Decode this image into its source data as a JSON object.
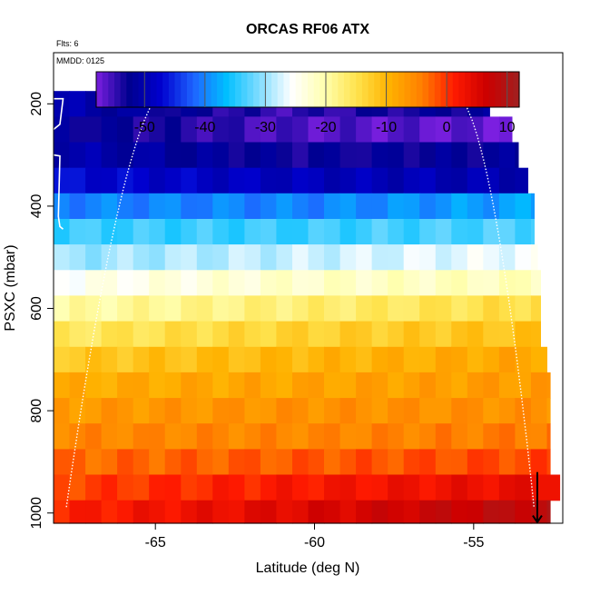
{
  "chart_data": {
    "type": "heatmap",
    "title": "ORCAS RF06 ATX",
    "note_flights": "Flts: 6",
    "note_date": "MMDD: 0125",
    "xlabel": "Latitude (deg N)",
    "ylabel": "PSXC (mbar)",
    "xlim": [
      -68.2,
      -52.2
    ],
    "ylim": [
      1020,
      100
    ],
    "x_ticks": [
      -65,
      -60,
      -55
    ],
    "y_ticks": [
      200,
      400,
      600,
      800,
      1000
    ],
    "colorbar": {
      "range": [
        -58,
        12
      ],
      "ticks": [
        -50,
        -40,
        -30,
        -20,
        -10,
        0,
        10
      ],
      "palette": [
        "#7b1fe0",
        "#00008f",
        "#0000cf",
        "#1e64ff",
        "#00bfff",
        "#7fdcff",
        "#ffffff",
        "#ffffb0",
        "#ffe34d",
        "#ffb200",
        "#ff7f00",
        "#ff1a00",
        "#cc0000",
        "#a02020"
      ]
    },
    "pressure_levels": [
      {
        "p_top": 175,
        "p_bot": 225,
        "lat_max": -54.5,
        "t_south": -50,
        "t_north": -52,
        "mid": -55
      },
      {
        "p_top": 225,
        "p_bot": 275,
        "lat_max": -53.8,
        "t_south": -52,
        "t_north": -57,
        "mid": -56
      },
      {
        "p_top": 275,
        "p_bot": 325,
        "lat_max": -53.6,
        "t_south": -50,
        "t_north": -52,
        "mid": -53
      },
      {
        "p_top": 325,
        "p_bot": 375,
        "lat_max": -53.3,
        "t_south": -47,
        "t_north": -50,
        "mid": -49
      },
      {
        "p_top": 375,
        "p_bot": 425,
        "lat_max": -53.1,
        "t_south": -40,
        "t_north": -38,
        "mid": -40
      },
      {
        "p_top": 425,
        "p_bot": 475,
        "lat_max": -53.1,
        "t_south": -34,
        "t_north": -33,
        "mid": -34
      },
      {
        "p_top": 475,
        "p_bot": 525,
        "lat_max": -53.0,
        "t_south": -30,
        "t_north": -26,
        "mid": -28
      },
      {
        "p_top": 525,
        "p_bot": 575,
        "lat_max": -52.9,
        "t_south": -25,
        "t_north": -21,
        "mid": -22
      },
      {
        "p_top": 575,
        "p_bot": 625,
        "lat_max": -52.9,
        "t_south": -20,
        "t_north": -14,
        "mid": -17
      },
      {
        "p_top": 625,
        "p_bot": 675,
        "lat_max": -52.9,
        "t_south": -16,
        "t_north": -11,
        "mid": -13
      },
      {
        "p_top": 675,
        "p_bot": 725,
        "lat_max": -52.7,
        "t_south": -12,
        "t_north": -8,
        "mid": -10
      },
      {
        "p_top": 725,
        "p_bot": 775,
        "lat_max": -52.6,
        "t_south": -9,
        "t_north": -7,
        "mid": -8
      },
      {
        "p_top": 775,
        "p_bot": 825,
        "lat_max": -52.6,
        "t_south": -7,
        "t_north": -6,
        "mid": -6
      },
      {
        "p_top": 825,
        "p_bot": 875,
        "lat_max": -52.6,
        "t_south": -5,
        "t_north": -4,
        "mid": -5
      },
      {
        "p_top": 875,
        "p_bot": 925,
        "lat_max": -52.6,
        "t_south": -3,
        "t_north": -1,
        "mid": -2
      },
      {
        "p_top": 925,
        "p_bot": 975,
        "lat_max": -52.3,
        "t_south": -1,
        "t_north": 4,
        "mid": 2
      },
      {
        "p_top": 975,
        "p_bot": 1020,
        "lat_max": -52.6,
        "t_south": 1,
        "t_north": 9,
        "mid": 5
      }
    ]
  }
}
